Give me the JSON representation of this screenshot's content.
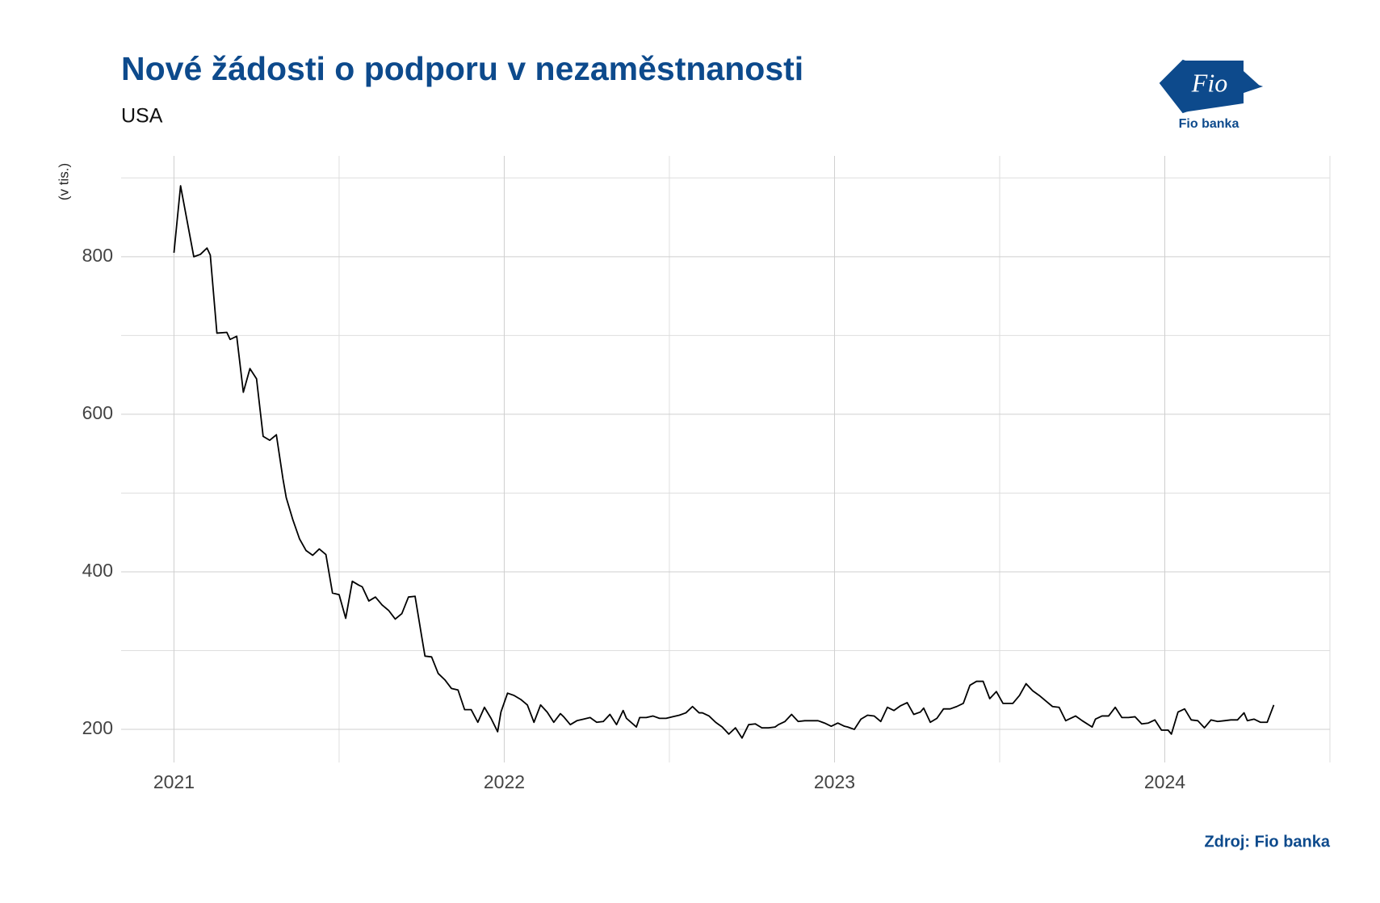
{
  "chart_data": {
    "type": "line",
    "title": "Nové žádosti o podporu v nezaměstnanosti",
    "subtitle": "USA",
    "y_label": "(v tis.)",
    "source": "Zdroj: Fio banka",
    "logo": {
      "mark": "Fio",
      "name": "Fio banka"
    },
    "xlim": [
      2020.84,
      2024.5
    ],
    "xticks": [
      2021,
      2022,
      2023,
      2024
    ],
    "x_minor_ticks": [
      2021.5,
      2022.5,
      2023.5,
      2024.5
    ],
    "ylim": [
      158,
      928
    ],
    "yticks": [
      200,
      400,
      600,
      800
    ],
    "y_minor_ticks": [
      300,
      500,
      700,
      900
    ],
    "grid": true,
    "series": [
      {
        "color": "#000000",
        "x": [
          2021.0,
          2021.02,
          2021.06,
          2021.08,
          2021.1,
          2021.11,
          2021.13,
          2021.16,
          2021.17,
          2021.19,
          2021.21,
          2021.23,
          2021.25,
          2021.27,
          2021.29,
          2021.31,
          2021.33,
          2021.34,
          2021.36,
          2021.38,
          2021.4,
          2021.42,
          2021.44,
          2021.46,
          2021.48,
          2021.5,
          2021.52,
          2021.54,
          2021.56,
          2021.57,
          2021.59,
          2021.61,
          2021.63,
          2021.65,
          2021.67,
          2021.69,
          2021.71,
          2021.73,
          2021.75,
          2021.76,
          2021.78,
          2021.8,
          2021.82,
          2021.84,
          2021.86,
          2021.88,
          2021.9,
          2021.92,
          2021.94,
          2021.96,
          2021.98,
          2021.99,
          2022.01,
          2022.03,
          2022.05,
          2022.07,
          2022.09,
          2022.11,
          2022.13,
          2022.15,
          2022.17,
          2022.18,
          2022.2,
          2022.22,
          2022.24,
          2022.26,
          2022.28,
          2022.3,
          2022.32,
          2022.34,
          2022.36,
          2022.37,
          2022.4,
          2022.41,
          2022.43,
          2022.45,
          2022.47,
          2022.49,
          2022.51,
          2022.53,
          2022.55,
          2022.57,
          2022.59,
          2022.6,
          2022.62,
          2022.64,
          2022.66,
          2022.68,
          2022.7,
          2022.72,
          2022.74,
          2022.76,
          2022.78,
          2022.8,
          2022.82,
          2022.83,
          2022.85,
          2022.87,
          2022.89,
          2022.91,
          2022.93,
          2022.95,
          2022.97,
          2022.99,
          2023.01,
          2023.03,
          2023.04,
          2023.06,
          2023.08,
          2023.1,
          2023.12,
          2023.14,
          2023.16,
          2023.18,
          2023.2,
          2023.22,
          2023.24,
          2023.26,
          2023.27,
          2023.29,
          2023.31,
          2023.33,
          2023.35,
          2023.37,
          2023.39,
          2023.41,
          2023.43,
          2023.45,
          2023.47,
          2023.49,
          2023.51,
          2023.53,
          2023.54,
          2023.56,
          2023.58,
          2023.6,
          2023.62,
          2023.64,
          2023.66,
          2023.68,
          2023.7,
          2023.71,
          2023.73,
          2023.75,
          2023.78,
          2023.79,
          2023.81,
          2023.83,
          2023.85,
          2023.87,
          2023.89,
          2023.91,
          2023.93,
          2023.95,
          2023.97,
          2023.99,
          2024.01,
          2024.02,
          2024.04,
          2024.06,
          2024.08,
          2024.1,
          2024.12,
          2024.14,
          2024.16,
          2024.18,
          2024.2,
          2024.22,
          2024.24,
          2024.25,
          2024.27,
          2024.29,
          2024.31,
          2024.33
        ],
        "values": [
          805,
          890,
          800,
          803,
          811,
          802,
          703,
          704,
          695,
          699,
          628,
          658,
          645,
          572,
          567,
          574,
          518,
          494,
          466,
          442,
          427,
          421,
          429,
          422,
          373,
          371,
          341,
          388,
          383,
          381,
          363,
          368,
          358,
          351,
          340,
          347,
          368,
          369,
          318,
          293,
          292,
          271,
          263,
          252,
          250,
          225,
          225,
          209,
          228,
          214,
          197,
          222,
          246,
          243,
          238,
          231,
          209,
          231,
          222,
          209,
          220,
          216,
          206,
          211,
          213,
          215,
          209,
          210,
          219,
          206,
          224,
          214,
          203,
          215,
          215,
          217,
          214,
          214,
          216,
          218,
          221,
          229,
          221,
          221,
          217,
          209,
          203,
          194,
          202,
          189,
          206,
          207,
          202,
          202,
          203,
          206,
          210,
          219,
          210,
          211,
          211,
          211,
          208,
          204,
          208,
          204,
          203,
          200,
          213,
          218,
          217,
          210,
          228,
          224,
          230,
          234,
          219,
          222,
          227,
          209,
          214,
          226,
          226,
          229,
          233,
          256,
          261,
          261,
          239,
          248,
          233,
          233,
          233,
          243,
          258,
          249,
          243,
          236,
          229,
          228,
          211,
          213,
          217,
          211,
          203,
          213,
          217,
          217,
          228,
          215,
          215,
          216,
          207,
          208,
          212,
          199,
          199,
          194,
          222,
          226,
          212,
          211,
          202,
          212,
          210,
          211,
          212,
          212,
          221,
          211,
          213,
          209,
          209,
          231
        ]
      }
    ]
  }
}
